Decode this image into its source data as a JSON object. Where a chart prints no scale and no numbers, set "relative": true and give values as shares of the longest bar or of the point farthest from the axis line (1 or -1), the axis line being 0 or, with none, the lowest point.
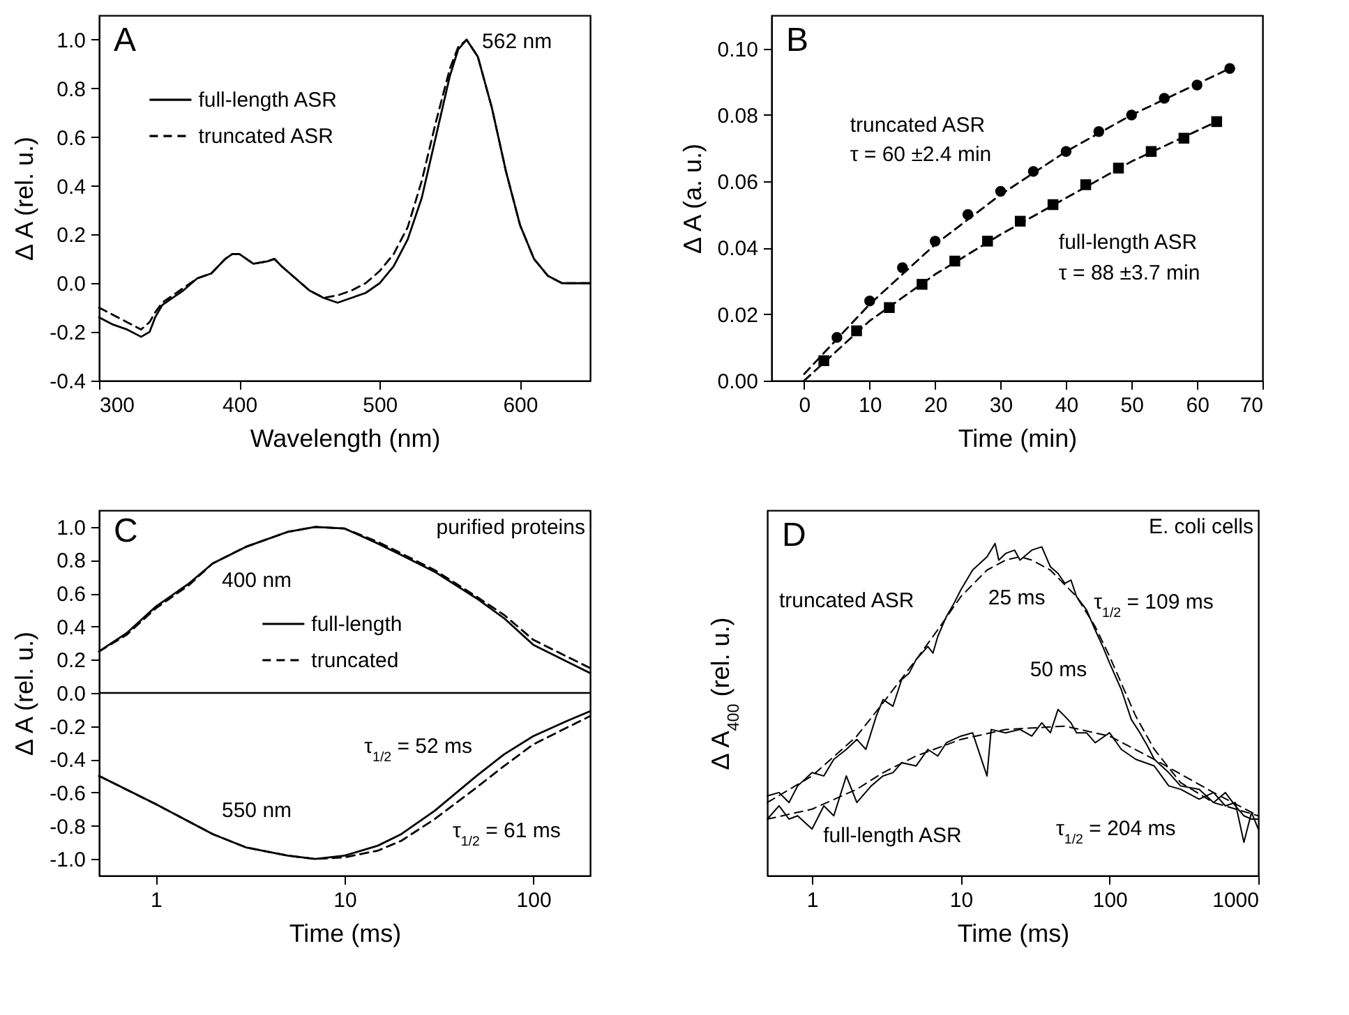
{
  "chart_data": [
    {
      "type": "line",
      "title": "A",
      "xlabel": "Wavelength (nm)",
      "ylabel": "Δ A (rel. u.)",
      "xlim": [
        300,
        650
      ],
      "xticks": [
        300,
        400,
        500,
        600
      ],
      "ylim": [
        -0.4,
        1.1
      ],
      "yticks": [
        {
          "value": -0.4,
          "label": "-0.4"
        },
        {
          "value": -0.2,
          "label": "-0.2"
        },
        {
          "value": 0,
          "label": "0.0"
        },
        {
          "value": 0.2,
          "label": "0.2"
        },
        {
          "value": 0.4,
          "label": "0.4"
        },
        {
          "value": 0.6,
          "label": "0.6"
        },
        {
          "value": 0.8,
          "label": "0.8"
        },
        {
          "value": 1,
          "label": "1.0"
        }
      ],
      "legend": "top left",
      "annotations": [
        "562 nm"
      ],
      "x": [
        300,
        310,
        320,
        330,
        336,
        340,
        345,
        350,
        360,
        370,
        380,
        390,
        395,
        400,
        410,
        420,
        425,
        430,
        440,
        450,
        460,
        470,
        480,
        490,
        500,
        510,
        520,
        530,
        540,
        550,
        556,
        562,
        570,
        580,
        590,
        600,
        610,
        620,
        630,
        640,
        650
      ],
      "series": [
        {
          "name": "full-length ASR",
          "color": "#000000",
          "line_style": "solid",
          "values": [
            -0.14,
            -0.17,
            -0.19,
            -0.22,
            -0.2,
            -0.14,
            -0.09,
            -0.07,
            -0.03,
            0.02,
            0.04,
            0.1,
            0.12,
            0.12,
            0.08,
            0.09,
            0.1,
            0.07,
            0.02,
            -0.03,
            -0.06,
            -0.08,
            -0.06,
            -0.04,
            0.0,
            0.07,
            0.18,
            0.35,
            0.6,
            0.85,
            0.96,
            1.0,
            0.93,
            0.72,
            0.46,
            0.24,
            0.1,
            0.03,
            0.0,
            0.0,
            0.0
          ]
        },
        {
          "name": "truncated ASR",
          "color": "#000000",
          "line_style": "dashed",
          "values": [
            -0.1,
            -0.13,
            -0.16,
            -0.19,
            -0.16,
            -0.12,
            -0.08,
            -0.06,
            -0.02,
            0.02,
            0.04,
            0.1,
            0.12,
            0.12,
            0.08,
            0.09,
            0.1,
            0.07,
            0.02,
            -0.03,
            -0.06,
            -0.05,
            -0.03,
            0.0,
            0.05,
            0.12,
            0.23,
            0.42,
            0.66,
            0.88,
            0.97,
            1.0,
            0.93,
            0.72,
            0.46,
            0.24,
            0.1,
            0.03,
            0.0,
            0.0,
            0.0
          ]
        }
      ]
    },
    {
      "type": "scatter",
      "title": "B",
      "xlabel": "Time (min)",
      "ylabel": "Δ A (a. u.)",
      "xlim": [
        -5,
        70
      ],
      "xticks": [
        0,
        10,
        20,
        30,
        40,
        50,
        60,
        70
      ],
      "ylim": [
        0,
        0.11
      ],
      "yticks": [
        {
          "value": 0,
          "label": "0.00"
        },
        {
          "value": 0.02,
          "label": "0.02"
        },
        {
          "value": 0.04,
          "label": "0.04"
        },
        {
          "value": 0.06,
          "label": "0.06"
        },
        {
          "value": 0.08,
          "label": "0.08"
        },
        {
          "value": 0.1,
          "label": "0.10"
        }
      ],
      "annotations": [
        "τ = 60 ±2.4 min",
        "τ = 88 ±3.7 min"
      ],
      "series": [
        {
          "name": "truncated ASR",
          "color": "#000000",
          "marker": "circle",
          "x": [
            5,
            10,
            15,
            20,
            25,
            30,
            35,
            40,
            45,
            50,
            55,
            60,
            65
          ],
          "values": [
            0.013,
            0.024,
            0.034,
            0.042,
            0.05,
            0.057,
            0.063,
            0.069,
            0.075,
            0.08,
            0.085,
            0.089,
            0.094
          ]
        },
        {
          "name": "full-length ASR",
          "color": "#000000",
          "marker": "square",
          "x": [
            3,
            8,
            13,
            18,
            23,
            28,
            33,
            38,
            43,
            48,
            53,
            58,
            63
          ],
          "values": [
            0.006,
            0.015,
            0.022,
            0.029,
            0.036,
            0.042,
            0.048,
            0.053,
            0.059,
            0.064,
            0.069,
            0.073,
            0.078
          ]
        },
        {
          "type": "line",
          "color": "#000000",
          "line_style": "dashed",
          "x": [
            0,
            10,
            20,
            30,
            40,
            50,
            65
          ],
          "values": [
            0.002,
            0.023,
            0.041,
            0.056,
            0.069,
            0.08,
            0.094
          ]
        },
        {
          "type": "line",
          "color": "#000000",
          "line_style": "dashed",
          "x": [
            0,
            10,
            20,
            30,
            40,
            50,
            63
          ],
          "values": [
            0.0,
            0.018,
            0.032,
            0.044,
            0.055,
            0.066,
            0.078
          ]
        }
      ]
    },
    {
      "type": "line",
      "title": "C",
      "xlabel": "Time (ms)",
      "ylabel": "Δ A (rel. u.)",
      "log": "x",
      "xlim": [
        0.5,
        200
      ],
      "xticks": [
        1,
        10,
        100
      ],
      "ylim": [
        -1.1,
        1.1
      ],
      "yticks": [
        {
          "value": -1,
          "label": "-1.0"
        },
        {
          "value": -0.8,
          "label": "-0.8"
        },
        {
          "value": -0.6,
          "label": "-0.6"
        },
        {
          "value": -0.4,
          "label": "-0.4"
        },
        {
          "value": -0.2,
          "label": "-0.2"
        },
        {
          "value": 0,
          "label": "0.0"
        },
        {
          "value": 0.2,
          "label": "0.2"
        },
        {
          "value": 0.4,
          "label": "0.4"
        },
        {
          "value": 0.6,
          "label": "0.6"
        },
        {
          "value": 0.8,
          "label": "0.8"
        },
        {
          "value": 1,
          "label": "1.0"
        }
      ],
      "legend": "center",
      "ref_lines": [
        {
          "axis": "y",
          "value": 0,
          "color": "#000000"
        }
      ],
      "annotations": [
        "purified proteins",
        "400 nm",
        "550 nm",
        "τ$_{1/2}$ = 52 ms",
        "τ$_{1/2}$ = 61 ms"
      ],
      "series": [
        {
          "name": "full-length",
          "color": "#000000",
          "line_style": "solid",
          "x": [
            0.5,
            0.7,
            1,
            1.5,
            2,
            3,
            5,
            7,
            10,
            15,
            20,
            30,
            50,
            70,
            100,
            150,
            200
          ],
          "values": [
            0.25,
            0.36,
            0.52,
            0.66,
            0.78,
            0.88,
            0.97,
            1.0,
            0.99,
            0.9,
            0.83,
            0.73,
            0.57,
            0.45,
            0.29,
            0.19,
            0.12
          ]
        },
        {
          "name": "truncated",
          "color": "#000000",
          "line_style": "dashed",
          "x": [
            0.5,
            0.7,
            1,
            1.5,
            2,
            3,
            5,
            7,
            10,
            15,
            20,
            30,
            50,
            70,
            100,
            150,
            200
          ],
          "values": [
            0.25,
            0.35,
            0.51,
            0.65,
            0.78,
            0.88,
            0.97,
            1.0,
            0.99,
            0.91,
            0.84,
            0.74,
            0.58,
            0.47,
            0.32,
            0.22,
            0.15
          ]
        },
        {
          "color": "#000000",
          "line_style": "solid",
          "x": [
            0.5,
            1,
            2,
            3,
            5,
            7,
            10,
            15,
            20,
            30,
            50,
            70,
            100,
            150,
            200
          ],
          "values": [
            -0.5,
            -0.67,
            -0.85,
            -0.93,
            -0.98,
            -1.0,
            -0.98,
            -0.92,
            -0.85,
            -0.71,
            -0.5,
            -0.37,
            -0.26,
            -0.17,
            -0.11
          ]
        },
        {
          "color": "#000000",
          "line_style": "dashed",
          "x": [
            0.5,
            1,
            2,
            3,
            5,
            7,
            10,
            15,
            20,
            30,
            50,
            70,
            100,
            150,
            200
          ],
          "values": [
            -0.5,
            -0.67,
            -0.85,
            -0.93,
            -0.98,
            -1.0,
            -0.99,
            -0.95,
            -0.89,
            -0.76,
            -0.57,
            -0.44,
            -0.31,
            -0.21,
            -0.14
          ]
        }
      ]
    },
    {
      "type": "line",
      "title": "D",
      "xlabel": "Time (ms)",
      "ylabel": "Δ A$_{400}$ (rel. u.)",
      "log": "x",
      "relative": true,
      "xlim": [
        0.5,
        1000
      ],
      "xticks": [
        1,
        10,
        100,
        1000
      ],
      "annotations": [
        "E. coli cells",
        "25 ms",
        "τ$_{1/2}$ = 109 ms",
        "50 ms",
        "τ$_{1/2}$ = 204 ms"
      ],
      "series": [
        {
          "name": "truncated ASR",
          "color": "#000000",
          "line_style": "solid",
          "x": [
            0.5,
            0.6,
            0.7,
            0.8,
            1,
            1.2,
            1.4,
            1.7,
            2,
            2.3,
            2.7,
            3,
            3.5,
            4,
            4.5,
            5,
            6,
            6.5,
            7,
            8,
            9,
            10,
            12,
            15,
            17,
            18,
            20,
            23,
            25,
            30,
            35,
            40,
            45,
            50,
            55,
            60,
            70,
            80,
            90,
            100,
            120,
            140,
            160,
            180,
            200,
            250,
            300,
            400,
            500,
            600,
            700,
            800,
            900,
            1000
          ],
          "values": [
            0.24,
            0.25,
            0.22,
            0.27,
            0.31,
            0.3,
            0.35,
            0.38,
            0.41,
            0.38,
            0.48,
            0.53,
            0.51,
            0.59,
            0.61,
            0.65,
            0.69,
            0.67,
            0.72,
            0.78,
            0.82,
            0.86,
            0.92,
            0.96,
            1.0,
            0.95,
            0.97,
            0.98,
            0.95,
            0.98,
            0.99,
            0.93,
            0.91,
            0.88,
            0.89,
            0.84,
            0.8,
            0.74,
            0.69,
            0.64,
            0.56,
            0.47,
            0.43,
            0.39,
            0.35,
            0.31,
            0.27,
            0.26,
            0.22,
            0.25,
            0.21,
            0.18,
            0.17,
            0.17
          ]
        },
        {
          "name": "full-length ASR",
          "color": "#000000",
          "line_style": "solid",
          "x": [
            0.5,
            0.6,
            0.7,
            0.8,
            1,
            1.2,
            1.4,
            1.7,
            2,
            2.5,
            3,
            3.5,
            4,
            5,
            6,
            7,
            8,
            10,
            12,
            15,
            16,
            20,
            25,
            30,
            35,
            40,
            45,
            50,
            55,
            60,
            70,
            80,
            100,
            120,
            150,
            200,
            250,
            300,
            400,
            500,
            600,
            700,
            800,
            900,
            1000
          ],
          "values": [
            0.17,
            0.21,
            0.17,
            0.18,
            0.14,
            0.21,
            0.18,
            0.3,
            0.22,
            0.27,
            0.3,
            0.31,
            0.34,
            0.33,
            0.38,
            0.36,
            0.4,
            0.42,
            0.43,
            0.3,
            0.44,
            0.43,
            0.44,
            0.42,
            0.46,
            0.43,
            0.5,
            0.48,
            0.46,
            0.43,
            0.43,
            0.4,
            0.43,
            0.38,
            0.35,
            0.33,
            0.27,
            0.26,
            0.23,
            0.25,
            0.21,
            0.22,
            0.1,
            0.19,
            0.14
          ]
        },
        {
          "color": "#000000",
          "line_style": "dashed",
          "x": [
            0.5,
            1,
            2,
            3,
            5,
            7,
            10,
            15,
            20,
            25,
            30,
            40,
            60,
            80,
            100,
            150,
            200,
            300,
            500,
            1000
          ],
          "values": [
            0.22,
            0.3,
            0.42,
            0.52,
            0.65,
            0.74,
            0.84,
            0.92,
            0.95,
            0.96,
            0.95,
            0.92,
            0.84,
            0.75,
            0.66,
            0.48,
            0.38,
            0.28,
            0.22,
            0.18
          ]
        },
        {
          "color": "#000000",
          "line_style": "dashed",
          "x": [
            0.5,
            1,
            2,
            3,
            5,
            10,
            20,
            50,
            100,
            200,
            500,
            1000
          ],
          "values": [
            0.17,
            0.2,
            0.26,
            0.31,
            0.36,
            0.41,
            0.44,
            0.45,
            0.42,
            0.35,
            0.25,
            0.18
          ]
        }
      ]
    }
  ]
}
